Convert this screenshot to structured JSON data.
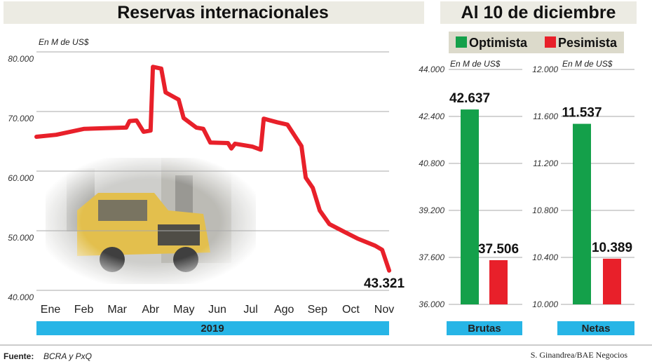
{
  "chart_data": [
    {
      "type": "line",
      "title": "Reservas internacionales",
      "ylabel": "En M de US$",
      "ylim": [
        40000,
        80000
      ],
      "yticks": [
        40000,
        50000,
        60000,
        70000,
        80000
      ],
      "ytick_labels": [
        "40.000",
        "50.000",
        "60.000",
        "70.000",
        "80.000"
      ],
      "categories": [
        "Ene",
        "Feb",
        "Mar",
        "Abr",
        "May",
        "Jun",
        "Jul",
        "Ago",
        "Sep",
        "Oct",
        "Nov"
      ],
      "xband_label": "2019",
      "series": [
        {
          "name": "Reservas",
          "color": "#e8202a",
          "x": [
            -0.42,
            0.17,
            0.59,
            1.01,
            1.64,
            2.27,
            2.37,
            2.58,
            2.79,
            3.0,
            3.07,
            3.32,
            3.45,
            3.84,
            3.99,
            4.37,
            4.58,
            4.79,
            5.32,
            5.42,
            5.53,
            6.05,
            6.3,
            6.39,
            6.79,
            7.1,
            7.31,
            7.52,
            7.65,
            7.86,
            8.07,
            8.36,
            8.78,
            9.2,
            9.73,
            9.94,
            10.15
          ],
          "values": [
            65760,
            66100,
            66600,
            67100,
            67200,
            67300,
            68400,
            68500,
            66600,
            66800,
            77500,
            77200,
            73200,
            72000,
            68900,
            67300,
            67100,
            64800,
            64700,
            63800,
            64600,
            64100,
            63600,
            68800,
            68200,
            67800,
            66000,
            64200,
            58900,
            57200,
            53400,
            51100,
            49900,
            48700,
            47500,
            46800,
            43321
          ]
        }
      ],
      "annotations": [
        {
          "label": "43.321",
          "value": 43321
        }
      ],
      "grid": true
    },
    {
      "type": "bar",
      "title": "Al 10 de diciembre",
      "ylabel": "En M de US$",
      "xlabel": "Brutas",
      "ylim": [
        36000,
        44000
      ],
      "yticks": [
        36000,
        37600,
        39200,
        40800,
        42400,
        44000
      ],
      "ytick_labels": [
        "36.000",
        "37.600",
        "39.200",
        "40.800",
        "42.400",
        "44.000"
      ],
      "categories": [
        "Optimista",
        "Pesimista"
      ],
      "values": [
        42637,
        37506
      ],
      "value_labels": [
        "42.637",
        "37.506"
      ]
    },
    {
      "type": "bar",
      "title": "Al 10 de diciembre",
      "ylabel": "En M de US$",
      "xlabel": "Netas",
      "ylim": [
        10000,
        12000
      ],
      "yticks": [
        10000,
        10400,
        10800,
        11200,
        11600,
        12000
      ],
      "ytick_labels": [
        "10.000",
        "10.400",
        "10.800",
        "11.200",
        "11.600",
        "12.000"
      ],
      "categories": [
        "Optimista",
        "Pesimista"
      ],
      "values": [
        11537,
        10389
      ],
      "value_labels": [
        "11.537",
        "10.389"
      ]
    }
  ],
  "legend": {
    "items": [
      {
        "label": "Optimista",
        "color": "#14a04a"
      },
      {
        "label": "Pesimista",
        "color": "#e8202a"
      }
    ]
  },
  "colors": {
    "band": "#27b5e6",
    "title_bg": "#ecebe3",
    "legend_bg": "#dcdacb"
  },
  "footer": {
    "source_label": "Fuente:",
    "source": "BCRA y PxQ",
    "credit": "S. Ginandrea/BAE Negocios"
  }
}
